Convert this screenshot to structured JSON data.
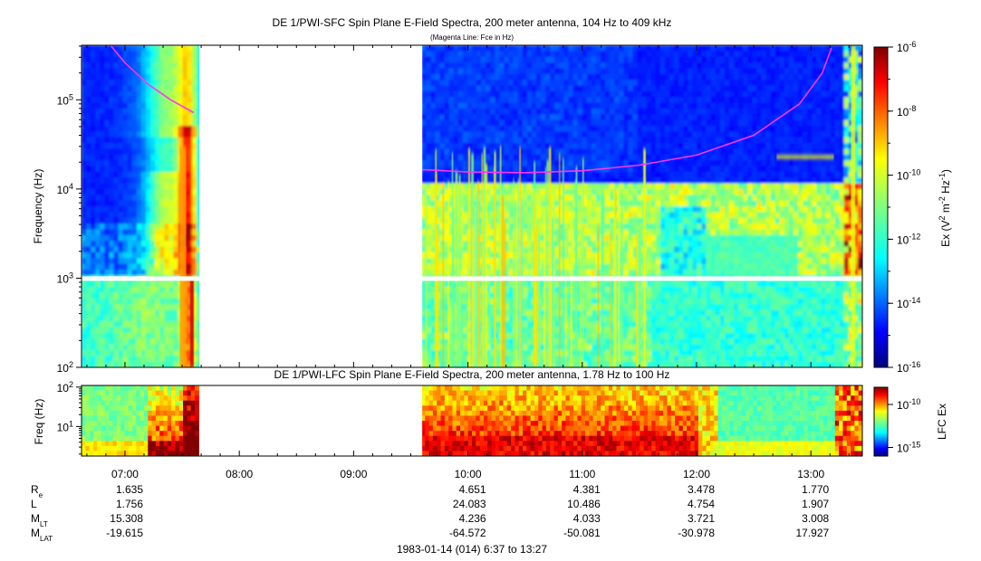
{
  "chart_data": [
    {
      "type": "heatmap",
      "title": "DE 1/PWI-SFC  Spin Plane E-Field Spectra, 200 meter antenna, 104 Hz to 409 kHz",
      "subtitle": "(Magenta Line: Fce in Hz)",
      "ylabel": "Frequency (Hz)",
      "yscale": "log",
      "ylim": [
        100,
        409000
      ],
      "ytick_labels": [
        "10^2",
        "10^3",
        "10^4",
        "10^5"
      ],
      "xlim_hours": [
        6.62,
        13.45
      ],
      "data_gap_hours": [
        7.65,
        9.6
      ],
      "colorbar": {
        "label": "Ex (V^2 m^-2 Hz^-1)",
        "scale": "log",
        "range": [
          1e-16,
          1e-06
        ],
        "tick_labels": [
          "10^-6",
          "10^-8",
          "10^-10",
          "10^-12",
          "10^-14",
          "10^-16"
        ]
      },
      "fce_line": {
        "name": "Fce",
        "color": "#ff33ff",
        "segments": [
          {
            "x": [
              6.88,
              7.0,
              7.2,
              7.4,
              7.6
            ],
            "y": [
              400000,
              260000,
              150000,
              100000,
              72000
            ]
          },
          {
            "x": [
              9.6,
              10.0,
              10.5,
              11.0,
              11.5,
              12.0,
              12.5,
              12.9,
              13.1,
              13.18
            ],
            "y": [
              16500,
              15500,
              15200,
              16000,
              18500,
              24000,
              40000,
              90000,
              200000,
              380000
            ]
          }
        ]
      }
    },
    {
      "type": "heatmap",
      "title": "DE 1/PWI-LFC  Spin Plane E-Field Spectra, 200 meter antenna, 1.78 Hz to 100 Hz",
      "ylabel": "Freq (Hz)",
      "yscale": "log",
      "ylim": [
        1.78,
        110
      ],
      "ytick_labels": [
        "10^1",
        "10^2"
      ],
      "xlim_hours": [
        6.62,
        13.45
      ],
      "data_gap_hours": [
        7.65,
        9.6
      ],
      "colorbar": {
        "label": "LFC Ex",
        "scale": "log",
        "range": [
          1e-16,
          1e-08
        ],
        "tick_labels": [
          "10^-10",
          "10^-15"
        ]
      }
    }
  ],
  "time_axis": {
    "ticks": [
      {
        "hour": 7,
        "label": "07:00"
      },
      {
        "hour": 8,
        "label": "08:00"
      },
      {
        "hour": 9,
        "label": "09:00"
      },
      {
        "hour": 10,
        "label": "10:00"
      },
      {
        "hour": 11,
        "label": "11:00"
      },
      {
        "hour": 12,
        "label": "12:00"
      },
      {
        "hour": 13,
        "label": "13:00"
      }
    ]
  },
  "orbit_table": {
    "row_labels": [
      "R",
      "L",
      "M",
      "M"
    ],
    "row_subscripts": [
      "e",
      "",
      "LT",
      "LAT"
    ],
    "columns": [
      {
        "hour": 7,
        "values": [
          "1.635",
          "1.756",
          "15.308",
          "-19.615"
        ]
      },
      {
        "hour": 10,
        "values": [
          "4.651",
          "24.083",
          "4.236",
          "-64.572"
        ]
      },
      {
        "hour": 11,
        "values": [
          "4.381",
          "10.486",
          "4.033",
          "-50.081"
        ]
      },
      {
        "hour": 12,
        "values": [
          "3.478",
          "4.754",
          "3.721",
          "-30.978"
        ]
      },
      {
        "hour": 13,
        "values": [
          "1.770",
          "1.907",
          "3.008",
          "17.927"
        ]
      }
    ]
  },
  "footer": "1983-01-14 (014) 6:37 to 13:27"
}
